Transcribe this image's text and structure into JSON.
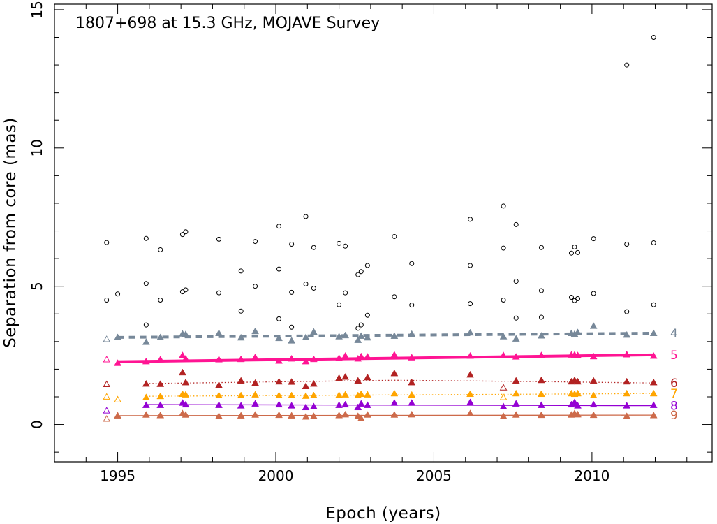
{
  "chart_data": {
    "type": "scatter",
    "title": "1807+698 at 15.3 GHz, MOJAVE Survey",
    "xlabel": "Epoch (years)",
    "ylabel": "Separation from core (mas)",
    "xlim": [
      1993.0,
      2013.8
    ],
    "ylim": [
      -1.35,
      15.2
    ],
    "xticks": [
      1995,
      2000,
      2005,
      2010
    ],
    "yticks": [
      0,
      5,
      10,
      15
    ],
    "unassigned": {
      "name": "unassigned",
      "color": "#000000",
      "points": [
        [
          1994.65,
          4.5
        ],
        [
          1994.65,
          6.58
        ],
        [
          1995.0,
          4.72
        ],
        [
          1995.9,
          3.6
        ],
        [
          1995.9,
          5.1
        ],
        [
          1995.9,
          6.73
        ],
        [
          1996.35,
          4.5
        ],
        [
          1996.35,
          6.32
        ],
        [
          1997.05,
          4.8
        ],
        [
          1997.05,
          6.87
        ],
        [
          1997.15,
          4.87
        ],
        [
          1997.15,
          6.97
        ],
        [
          1998.2,
          4.76
        ],
        [
          1998.2,
          6.7
        ],
        [
          1998.9,
          4.1
        ],
        [
          1998.9,
          5.55
        ],
        [
          1999.35,
          5.0
        ],
        [
          1999.35,
          6.62
        ],
        [
          2000.1,
          3.82
        ],
        [
          2000.1,
          5.62
        ],
        [
          2000.1,
          7.17
        ],
        [
          2000.5,
          3.52
        ],
        [
          2000.5,
          4.78
        ],
        [
          2000.5,
          6.52
        ],
        [
          2000.95,
          5.08
        ],
        [
          2000.95,
          7.52
        ],
        [
          2001.2,
          4.93
        ],
        [
          2001.2,
          6.4
        ],
        [
          2002.0,
          4.33
        ],
        [
          2002.0,
          6.55
        ],
        [
          2002.2,
          4.76
        ],
        [
          2002.2,
          6.45
        ],
        [
          2002.6,
          3.48
        ],
        [
          2002.6,
          5.42
        ],
        [
          2002.7,
          3.6
        ],
        [
          2002.7,
          5.53
        ],
        [
          2002.9,
          3.95
        ],
        [
          2002.9,
          5.75
        ],
        [
          2003.75,
          4.62
        ],
        [
          2003.75,
          6.8
        ],
        [
          2004.3,
          4.32
        ],
        [
          2004.3,
          5.82
        ],
        [
          2006.15,
          4.37
        ],
        [
          2006.15,
          5.75
        ],
        [
          2006.15,
          7.42
        ],
        [
          2007.2,
          4.5
        ],
        [
          2007.2,
          6.38
        ],
        [
          2007.2,
          7.9
        ],
        [
          2007.6,
          3.85
        ],
        [
          2007.6,
          5.18
        ],
        [
          2007.6,
          7.23
        ],
        [
          2008.4,
          3.88
        ],
        [
          2008.4,
          4.84
        ],
        [
          2008.4,
          6.4
        ],
        [
          2009.35,
          4.6
        ],
        [
          2009.35,
          6.2
        ],
        [
          2009.45,
          4.48
        ],
        [
          2009.45,
          6.42
        ],
        [
          2009.55,
          4.55
        ],
        [
          2009.55,
          6.22
        ],
        [
          2010.05,
          4.74
        ],
        [
          2010.05,
          6.72
        ],
        [
          2011.1,
          4.08
        ],
        [
          2011.1,
          6.52
        ],
        [
          2011.1,
          13.0
        ],
        [
          2011.95,
          4.33
        ],
        [
          2011.95,
          6.57
        ],
        [
          2011.95,
          14.0
        ]
      ]
    },
    "series": [
      {
        "name": "4",
        "color": "#778899",
        "fit": [
          [
            1995.0,
            3.15
          ],
          [
            2011.95,
            3.3
          ]
        ],
        "fit_style": "dashed-thick",
        "open": [
          [
            1994.65,
            3.08
          ]
        ],
        "points": [
          [
            1995.0,
            3.15
          ],
          [
            1995.9,
            2.98
          ],
          [
            1996.35,
            3.15
          ],
          [
            1997.05,
            3.28
          ],
          [
            1997.15,
            3.26
          ],
          [
            1998.2,
            3.3
          ],
          [
            1998.9,
            3.14
          ],
          [
            1999.35,
            3.37
          ],
          [
            2000.1,
            3.12
          ],
          [
            2000.5,
            3.03
          ],
          [
            2000.95,
            3.15
          ],
          [
            2001.2,
            3.35
          ],
          [
            2002.0,
            3.18
          ],
          [
            2002.2,
            3.22
          ],
          [
            2002.6,
            3.05
          ],
          [
            2002.7,
            3.2
          ],
          [
            2002.9,
            3.14
          ],
          [
            2003.75,
            3.2
          ],
          [
            2004.3,
            3.27
          ],
          [
            2006.15,
            3.32
          ],
          [
            2007.2,
            3.18
          ],
          [
            2007.6,
            3.1
          ],
          [
            2008.4,
            3.21
          ],
          [
            2009.35,
            3.3
          ],
          [
            2009.45,
            3.27
          ],
          [
            2009.55,
            3.33
          ],
          [
            2010.05,
            3.56
          ],
          [
            2011.1,
            3.24
          ],
          [
            2011.95,
            3.3
          ]
        ]
      },
      {
        "name": "5",
        "color": "#ff1493",
        "fit": [
          [
            1995.0,
            2.27
          ],
          [
            2011.95,
            2.52
          ]
        ],
        "fit_style": "solid-thick",
        "open": [
          [
            1994.65,
            2.35
          ]
        ],
        "points": [
          [
            1995.0,
            2.22
          ],
          [
            1995.9,
            2.28
          ],
          [
            1996.35,
            2.35
          ],
          [
            1997.05,
            2.5
          ],
          [
            1997.15,
            2.38
          ],
          [
            1998.2,
            2.35
          ],
          [
            1998.9,
            2.36
          ],
          [
            1999.35,
            2.43
          ],
          [
            2000.1,
            2.3
          ],
          [
            2000.5,
            2.38
          ],
          [
            2000.95,
            2.28
          ],
          [
            2001.2,
            2.36
          ],
          [
            2002.0,
            2.4
          ],
          [
            2002.2,
            2.48
          ],
          [
            2002.6,
            2.38
          ],
          [
            2002.7,
            2.46
          ],
          [
            2002.9,
            2.45
          ],
          [
            2003.75,
            2.52
          ],
          [
            2004.3,
            2.42
          ],
          [
            2006.15,
            2.48
          ],
          [
            2007.2,
            2.5
          ],
          [
            2007.6,
            2.45
          ],
          [
            2008.4,
            2.5
          ],
          [
            2009.35,
            2.52
          ],
          [
            2009.45,
            2.52
          ],
          [
            2009.55,
            2.5
          ],
          [
            2010.05,
            2.46
          ],
          [
            2011.1,
            2.53
          ],
          [
            2011.95,
            2.48
          ]
        ]
      },
      {
        "name": "6",
        "color": "#b22222",
        "fit": [
          [
            1995.9,
            1.48
          ],
          [
            2003.75,
            1.6
          ],
          [
            2008.4,
            1.55
          ],
          [
            2011.95,
            1.5
          ]
        ],
        "fit_style": "dotted",
        "open": [
          [
            1994.65,
            1.45
          ],
          [
            2007.2,
            1.33
          ]
        ],
        "points": [
          [
            1995.9,
            1.47
          ],
          [
            1996.35,
            1.46
          ],
          [
            1997.05,
            1.88
          ],
          [
            1997.15,
            1.52
          ],
          [
            1998.2,
            1.42
          ],
          [
            1998.9,
            1.58
          ],
          [
            1999.35,
            1.5
          ],
          [
            2000.1,
            1.55
          ],
          [
            2000.5,
            1.54
          ],
          [
            2000.95,
            1.38
          ],
          [
            2001.2,
            1.47
          ],
          [
            2002.0,
            1.68
          ],
          [
            2002.2,
            1.72
          ],
          [
            2002.6,
            1.58
          ],
          [
            2002.9,
            1.7
          ],
          [
            2003.75,
            1.85
          ],
          [
            2004.3,
            1.52
          ],
          [
            2006.15,
            1.8
          ],
          [
            2007.6,
            1.58
          ],
          [
            2008.4,
            1.6
          ],
          [
            2009.35,
            1.55
          ],
          [
            2009.45,
            1.6
          ],
          [
            2009.55,
            1.55
          ],
          [
            2010.05,
            1.58
          ],
          [
            2011.1,
            1.55
          ],
          [
            2011.95,
            1.52
          ]
        ]
      },
      {
        "name": "7",
        "color": "#ffa500",
        "fit": [
          [
            1995.9,
            1.02
          ],
          [
            2011.95,
            1.12
          ]
        ],
        "fit_style": "dotted",
        "open": [
          [
            1994.65,
            1.0
          ],
          [
            1995.0,
            0.9
          ],
          [
            2007.2,
            0.98
          ]
        ],
        "points": [
          [
            1995.9,
            0.98
          ],
          [
            1996.35,
            1.02
          ],
          [
            1997.05,
            1.1
          ],
          [
            1997.15,
            1.08
          ],
          [
            1998.2,
            1.05
          ],
          [
            1998.9,
            1.05
          ],
          [
            1999.35,
            1.08
          ],
          [
            2000.1,
            1.05
          ],
          [
            2000.5,
            1.05
          ],
          [
            2000.95,
            1.03
          ],
          [
            2001.2,
            1.05
          ],
          [
            2002.0,
            1.06
          ],
          [
            2002.2,
            1.08
          ],
          [
            2002.6,
            1.05
          ],
          [
            2002.7,
            1.1
          ],
          [
            2002.9,
            1.08
          ],
          [
            2003.75,
            1.12
          ],
          [
            2004.3,
            1.07
          ],
          [
            2006.15,
            1.1
          ],
          [
            2007.6,
            1.12
          ],
          [
            2008.4,
            1.1
          ],
          [
            2009.35,
            1.12
          ],
          [
            2009.45,
            1.1
          ],
          [
            2009.55,
            1.12
          ],
          [
            2010.05,
            1.05
          ],
          [
            2011.1,
            1.12
          ],
          [
            2011.95,
            1.12
          ]
        ]
      },
      {
        "name": "8",
        "color": "#9400d3",
        "fit": [
          [
            1995.9,
            0.72
          ],
          [
            2011.95,
            0.68
          ]
        ],
        "fit_style": "solid",
        "open": [
          [
            1994.65,
            0.5
          ]
        ],
        "points": [
          [
            1995.9,
            0.7
          ],
          [
            1996.35,
            0.7
          ],
          [
            1997.05,
            0.78
          ],
          [
            1997.15,
            0.72
          ],
          [
            1998.2,
            0.7
          ],
          [
            1998.9,
            0.68
          ],
          [
            1999.35,
            0.75
          ],
          [
            2000.1,
            0.72
          ],
          [
            2000.5,
            0.68
          ],
          [
            2000.95,
            0.62
          ],
          [
            2001.2,
            0.65
          ],
          [
            2002.0,
            0.7
          ],
          [
            2002.2,
            0.72
          ],
          [
            2002.6,
            0.62
          ],
          [
            2002.7,
            0.75
          ],
          [
            2002.9,
            0.7
          ],
          [
            2003.75,
            0.78
          ],
          [
            2004.3,
            0.78
          ],
          [
            2006.15,
            0.8
          ],
          [
            2007.2,
            0.65
          ],
          [
            2007.6,
            0.75
          ],
          [
            2008.4,
            0.7
          ],
          [
            2009.35,
            0.72
          ],
          [
            2009.45,
            0.8
          ],
          [
            2009.55,
            0.68
          ],
          [
            2010.05,
            0.72
          ],
          [
            2011.1,
            0.68
          ],
          [
            2011.95,
            0.7
          ]
        ]
      },
      {
        "name": "9",
        "color": "#cd6a4a",
        "fit": [
          [
            1995.0,
            0.32
          ],
          [
            2011.95,
            0.34
          ]
        ],
        "fit_style": "solid",
        "open": [
          [
            1994.65,
            0.2
          ]
        ],
        "points": [
          [
            1995.0,
            0.32
          ],
          [
            1995.9,
            0.35
          ],
          [
            1996.35,
            0.33
          ],
          [
            1997.05,
            0.4
          ],
          [
            1997.15,
            0.35
          ],
          [
            1998.2,
            0.3
          ],
          [
            1998.9,
            0.32
          ],
          [
            1999.35,
            0.35
          ],
          [
            2000.1,
            0.34
          ],
          [
            2000.5,
            0.32
          ],
          [
            2000.95,
            0.28
          ],
          [
            2001.2,
            0.3
          ],
          [
            2002.0,
            0.33
          ],
          [
            2002.2,
            0.36
          ],
          [
            2002.6,
            0.3
          ],
          [
            2002.7,
            0.22
          ],
          [
            2002.9,
            0.35
          ],
          [
            2003.75,
            0.35
          ],
          [
            2004.3,
            0.36
          ],
          [
            2006.15,
            0.4
          ],
          [
            2007.2,
            0.3
          ],
          [
            2007.6,
            0.35
          ],
          [
            2008.4,
            0.34
          ],
          [
            2009.35,
            0.35
          ],
          [
            2009.45,
            0.4
          ],
          [
            2009.55,
            0.36
          ],
          [
            2010.05,
            0.34
          ],
          [
            2011.1,
            0.3
          ],
          [
            2011.95,
            0.33
          ]
        ]
      }
    ]
  }
}
